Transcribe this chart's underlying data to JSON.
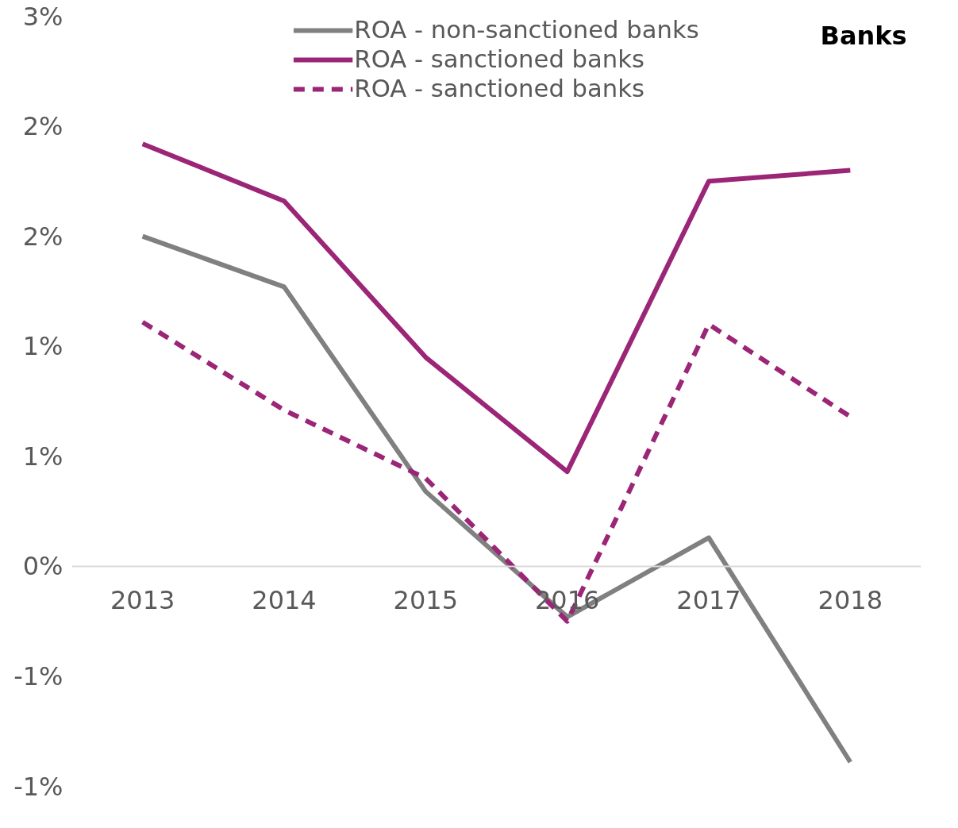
{
  "chart_data": {
    "type": "line",
    "title": "Banks",
    "categories": [
      "2013",
      "2014",
      "2015",
      "2016",
      "2017",
      "2018"
    ],
    "series": [
      {
        "name": "ROA - non-sanctioned banks",
        "color": "#808080",
        "values": [
          1.5,
          1.27,
          0.34,
          -0.23,
          0.13,
          -0.89
        ]
      },
      {
        "name": "ROA - sanctioned banks",
        "color": "#9b2576",
        "values": [
          1.92,
          1.66,
          0.95,
          0.43,
          1.75,
          1.8
        ]
      },
      {
        "name": "ROA - sanctioned banks",
        "color": "#9b2576",
        "line_style": "dashed",
        "values": [
          1.11,
          0.71,
          0.4,
          -0.25,
          1.1,
          0.68
        ]
      }
    ],
    "ylim": [
      -1.0,
      2.5
    ],
    "yticks": [
      {
        "value": -1.0,
        "label": "-1%"
      },
      {
        "value": -0.5,
        "label": "-1%"
      },
      {
        "value": 0,
        "label": "0%"
      },
      {
        "value": 0.5,
        "label": "1%"
      },
      {
        "value": 1.0,
        "label": "1%"
      },
      {
        "value": 1.5,
        "label": "2%"
      },
      {
        "value": 2.0,
        "label": "2%"
      },
      {
        "value": 2.5,
        "label": "3%"
      }
    ],
    "grid": false,
    "legend": "top",
    "marker": "none",
    "line_style": "solid"
  }
}
